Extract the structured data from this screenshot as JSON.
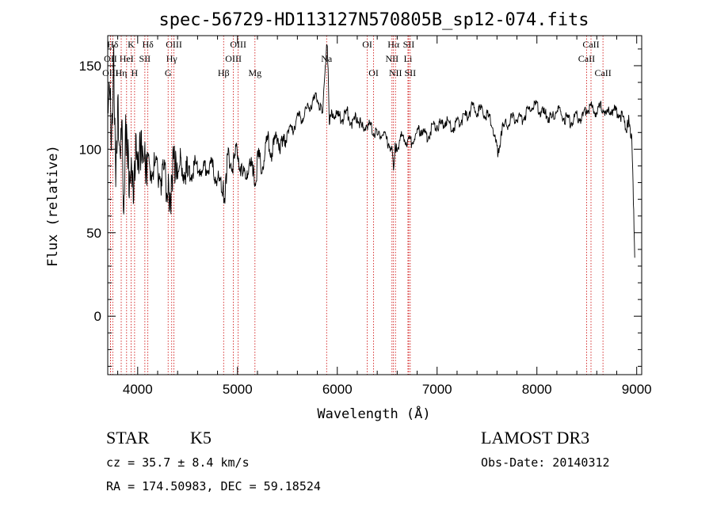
{
  "chart_data": {
    "type": "line",
    "title": "spec-56729-HD113127N570805B_sp12-074.fits",
    "xlabel": "Wavelength (Å)",
    "ylabel": "Flux (relative)",
    "xlim": [
      3700,
      9050
    ],
    "ylim": [
      -35,
      168
    ],
    "xticks": [
      4000,
      5000,
      6000,
      7000,
      8000,
      9000
    ],
    "yticks": [
      0,
      50,
      100,
      150
    ],
    "series": [
      {
        "name": "flux",
        "x": [
          3700,
          3720,
          3740,
          3760,
          3780,
          3800,
          3820,
          3840,
          3860,
          3880,
          3900,
          3920,
          3940,
          3960,
          3980,
          4000,
          4030,
          4060,
          4100,
          4150,
          4200,
          4250,
          4300,
          4330,
          4360,
          4400,
          4450,
          4500,
          4550,
          4600,
          4650,
          4700,
          4750,
          4800,
          4850,
          4870,
          4900,
          4950,
          5000,
          5050,
          5100,
          5150,
          5180,
          5200,
          5250,
          5300,
          5350,
          5400,
          5450,
          5500,
          5550,
          5600,
          5650,
          5700,
          5750,
          5800,
          5850,
          5880,
          5900,
          5920,
          5950,
          6000,
          6050,
          6100,
          6150,
          6200,
          6250,
          6300,
          6350,
          6400,
          6450,
          6500,
          6550,
          6563,
          6580,
          6600,
          6650,
          6700,
          6750,
          6800,
          6850,
          6900,
          6950,
          7000,
          7050,
          7100,
          7150,
          7200,
          7250,
          7300,
          7350,
          7400,
          7450,
          7500,
          7550,
          7600,
          7620,
          7650,
          7700,
          7750,
          7800,
          7850,
          7900,
          7950,
          8000,
          8050,
          8100,
          8150,
          8200,
          8250,
          8300,
          8350,
          8400,
          8450,
          8500,
          8550,
          8600,
          8650,
          8700,
          8750,
          8800,
          8850,
          8900,
          8920,
          8950,
          8960,
          8970,
          8980
        ],
        "y": [
          125,
          140,
          100,
          155,
          80,
          130,
          95,
          120,
          60,
          110,
          100,
          75,
          95,
          70,
          105,
          90,
          100,
          95,
          85,
          90,
          88,
          82,
          80,
          70,
          95,
          85,
          90,
          82,
          88,
          92,
          85,
          90,
          88,
          82,
          78,
          70,
          95,
          90,
          100,
          82,
          88,
          90,
          75,
          95,
          90,
          105,
          98,
          108,
          100,
          112,
          110,
          120,
          118,
          125,
          128,
          132,
          120,
          150,
          165,
          118,
          122,
          120,
          118,
          122,
          115,
          120,
          112,
          115,
          112,
          108,
          110,
          105,
          100,
          85,
          103,
          100,
          108,
          105,
          104,
          110,
          112,
          106,
          113,
          115,
          114,
          118,
          112,
          116,
          118,
          120,
          125,
          122,
          124,
          120,
          116,
          100,
          98,
          112,
          115,
          118,
          120,
          118,
          122,
          125,
          126,
          122,
          120,
          118,
          124,
          120,
          118,
          116,
          120,
          118,
          124,
          125,
          122,
          126,
          120,
          124,
          122,
          120,
          112,
          118,
          105,
          90,
          60,
          35
        ]
      }
    ],
    "lines": [
      {
        "label": "Hδ",
        "x": 3750,
        "row": 1
      },
      {
        "label": "OII",
        "x": 3727,
        "row": 2
      },
      {
        "label": "OIII",
        "x": 3727,
        "row": 3
      },
      {
        "label": "K",
        "x": 3934,
        "row": 1
      },
      {
        "label": "HeI",
        "x": 3889,
        "row": 2
      },
      {
        "label": "Hη",
        "x": 3835,
        "row": 3
      },
      {
        "label": "H",
        "x": 3969,
        "row": 3
      },
      {
        "label": "Hδ",
        "x": 4102,
        "row": 1
      },
      {
        "label": "SII",
        "x": 4072,
        "row": 2
      },
      {
        "label": "OIII",
        "x": 4363,
        "row": 1
      },
      {
        "label": "Hγ",
        "x": 4341,
        "row": 2
      },
      {
        "label": "G",
        "x": 4305,
        "row": 3
      },
      {
        "label": "OIII",
        "x": 5007,
        "row": 1
      },
      {
        "label": "OIII",
        "x": 4959,
        "row": 2
      },
      {
        "label": "Hβ",
        "x": 4861,
        "row": 3
      },
      {
        "label": "Mg",
        "x": 5175,
        "row": 3
      },
      {
        "label": "Na",
        "x": 5893,
        "row": 2
      },
      {
        "label": "OI",
        "x": 6300,
        "row": 1
      },
      {
        "label": "OI",
        "x": 6364,
        "row": 3
      },
      {
        "label": "Hα",
        "x": 6563,
        "row": 1
      },
      {
        "label": "SII",
        "x": 6716,
        "row": 1
      },
      {
        "label": "NII",
        "x": 6548,
        "row": 2
      },
      {
        "label": "Li",
        "x": 6708,
        "row": 2
      },
      {
        "label": "NII",
        "x": 6583,
        "row": 3
      },
      {
        "label": "SII",
        "x": 6731,
        "row": 3
      },
      {
        "label": "CaII",
        "x": 8542,
        "row": 1
      },
      {
        "label": "CaII",
        "x": 8498,
        "row": 2
      },
      {
        "label": "CaII",
        "x": 8662,
        "row": 3
      }
    ]
  },
  "info": {
    "class": "STAR",
    "subclass": "K5",
    "survey": "LAMOST DR3",
    "cz": "cz = 35.7 ± 8.4 km/s",
    "obs_date": "Obs-Date: 20140312",
    "radec": "RA = 174.50983, DEC =  59.18524"
  },
  "colors": {
    "spectrum": "#000000",
    "lines": "#cc0000",
    "axes": "#000000"
  }
}
